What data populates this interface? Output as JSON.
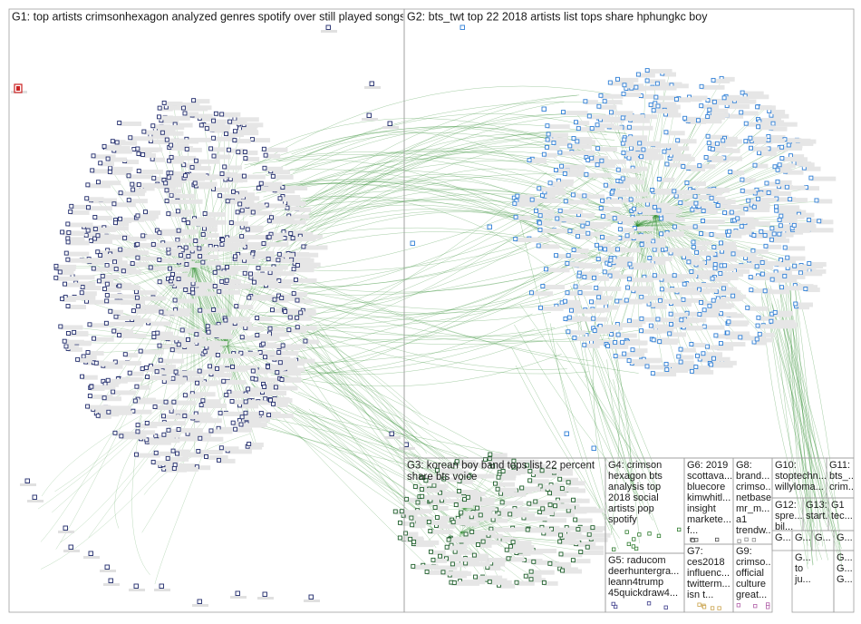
{
  "groups": [
    {
      "id": "G1",
      "lines": [
        "G1: top artists crimsonhexagon analyzed genres spotify over still played songs"
      ],
      "color": "#1f2a6b",
      "edge_color": "#2e8b2e"
    },
    {
      "id": "G2",
      "lines": [
        "G2: bts_twt top 22 2018 artists list tops share hphungkc boy"
      ],
      "color": "#2f7fd6",
      "edge_color": "#2e8b2e"
    },
    {
      "id": "G3",
      "lines": [
        "G3: korean boy band tops list 22 percent",
        "share bts voice"
      ],
      "color": "#1d5e2a",
      "edge_color": "#2e8b2e"
    },
    {
      "id": "G4",
      "lines": [
        "G4: crimson",
        "hexagon bts",
        "analysis top",
        "2018 social",
        "artists pop",
        "spotify"
      ],
      "color": "#2c7a2c"
    },
    {
      "id": "G5",
      "lines": [
        "G5: raducom",
        "deerhuntergra...",
        "leann4trump",
        "45quickdraw4..."
      ],
      "color": "#3b3b8a"
    },
    {
      "id": "G6",
      "lines": [
        "G6: 2019",
        "scottava...",
        "bluecore",
        "kimwhitl...",
        "insight",
        "markete...",
        "f..."
      ],
      "color": "#4a4a4a"
    },
    {
      "id": "G7",
      "lines": [
        "G7:",
        "ces2018",
        "influenc...",
        "twitterm...",
        "isn t..."
      ],
      "color": "#c9a24a"
    },
    {
      "id": "G8",
      "lines": [
        "G8:",
        "brand...",
        "crimso...",
        "netbase",
        "mr_m...",
        "a1",
        "trendw..."
      ],
      "color": "#8a8a8a"
    },
    {
      "id": "G9",
      "lines": [
        "G9:",
        "crimso...",
        "official",
        "culture",
        "great..."
      ],
      "color": "#b05fa8"
    },
    {
      "id": "G10",
      "lines": [
        "G10:",
        "stoptechn...",
        "willyloma..."
      ],
      "color": "#555555"
    },
    {
      "id": "G11",
      "lines": [
        "G11:",
        "bts_...",
        "crim..."
      ],
      "color": "#555555"
    },
    {
      "id": "G12",
      "lines": [
        "G12:",
        "spre...",
        "bil..."
      ],
      "color": "#555555"
    },
    {
      "id": "G13",
      "lines": [
        "G13:",
        "start..."
      ],
      "color": "#555555"
    },
    {
      "id": "G14",
      "lines": [
        "G1",
        "tec..."
      ],
      "color": "#555555"
    },
    {
      "id": "G15",
      "lines": [
        "G..."
      ],
      "color": "#555555"
    },
    {
      "id": "G16",
      "lines": [
        "G..."
      ],
      "color": "#555555"
    },
    {
      "id": "G17",
      "lines": [
        "G..."
      ],
      "color": "#555555"
    },
    {
      "id": "G18",
      "lines": [
        "G..."
      ],
      "color": "#555555"
    },
    {
      "id": "G19",
      "lines": [
        "G...",
        "to",
        "ju..."
      ],
      "color": "#555555"
    },
    {
      "id": "G20",
      "lines": [
        "G...",
        "G...",
        "G..."
      ],
      "color": "#555555"
    }
  ],
  "colors": {
    "background": "#ffffff",
    "box_border": "#9e9e9e",
    "edge": "#2e8b2e",
    "node_fill": "#ffffff"
  }
}
